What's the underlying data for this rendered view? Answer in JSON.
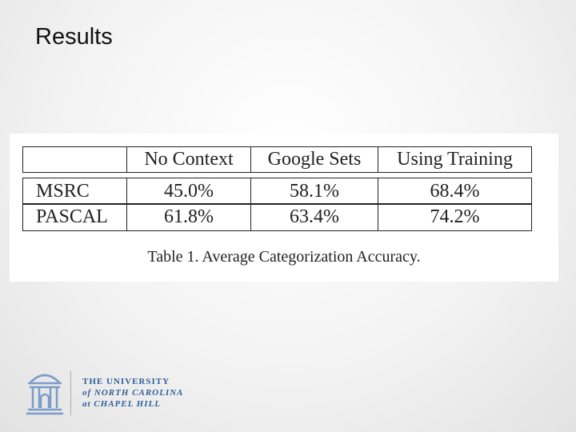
{
  "header": {
    "title": "Results"
  },
  "table": {
    "columns": [
      "No Context",
      "Google Sets",
      "Using Training"
    ],
    "rows": [
      [
        "MSRC",
        "45.0%",
        "58.1%",
        "68.4%"
      ],
      [
        "PASCAL",
        "61.8%",
        "63.4%",
        "74.2%"
      ]
    ],
    "caption": "Table 1. Average Categorization Accuracy."
  },
  "footer": {
    "logo_lines": [
      "THE UNIVERSITY",
      "of NORTH CAROLINA",
      "at CHAPEL HILL"
    ]
  }
}
